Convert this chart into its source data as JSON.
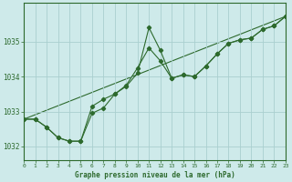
{
  "title": "Graphe pression niveau de la mer (hPa)",
  "bg_color": "#ceeaea",
  "grid_color": "#aacfcf",
  "line_color": "#2d6a2d",
  "xlim": [
    0,
    23
  ],
  "ylim": [
    1031.6,
    1036.1
  ],
  "xticks": [
    0,
    1,
    2,
    3,
    4,
    5,
    6,
    7,
    8,
    9,
    10,
    11,
    12,
    13,
    14,
    15,
    16,
    17,
    18,
    19,
    20,
    21,
    22,
    23
  ],
  "yticks": [
    1032,
    1033,
    1034,
    1035
  ],
  "series1_x": [
    0,
    1,
    2,
    3,
    4,
    5,
    6,
    7,
    8,
    9,
    10,
    11,
    12,
    13,
    14,
    15,
    16,
    17,
    18,
    19,
    20,
    21,
    22,
    23
  ],
  "series1_y": [
    1032.78,
    1032.78,
    1032.55,
    1032.25,
    1032.15,
    1032.15,
    1032.95,
    1033.1,
    1033.5,
    1033.75,
    1034.25,
    1034.82,
    1034.45,
    1033.95,
    1034.05,
    1034.0,
    1034.3,
    1034.65,
    1034.95,
    1035.05,
    1035.1,
    1035.35,
    1035.45,
    1035.72
  ],
  "series2_x": [
    0,
    1,
    2,
    3,
    4,
    5,
    6,
    7,
    8,
    9,
    10,
    11,
    12,
    13,
    14,
    15,
    16,
    17,
    18,
    19,
    20,
    21,
    22,
    23
  ],
  "series2_y": [
    1032.78,
    1032.78,
    1032.55,
    1032.25,
    1032.15,
    1032.15,
    1033.15,
    1033.35,
    1033.5,
    1033.72,
    1034.1,
    1035.4,
    1034.75,
    1033.95,
    1034.05,
    1034.0,
    1034.3,
    1034.65,
    1034.95,
    1035.05,
    1035.1,
    1035.35,
    1035.45,
    1035.72
  ],
  "series3_x": [
    0,
    23
  ],
  "series3_y": [
    1032.78,
    1035.72
  ]
}
